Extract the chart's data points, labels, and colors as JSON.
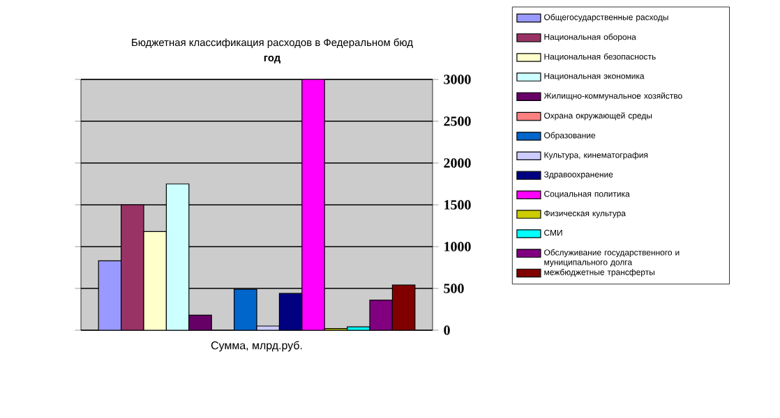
{
  "chart_data": {
    "type": "bar",
    "title": "Бюджетная классификация расходов в Федеральном бюд",
    "subtitle": "год",
    "categories": [
      "Сумма, млрд.руб."
    ],
    "series": [
      {
        "name": "Общегосударственные расходы",
        "color": "#9999ff",
        "values": [
          830
        ]
      },
      {
        "name": "Национальная оборона",
        "color": "#993366",
        "values": [
          1500
        ]
      },
      {
        "name": "Национальная безопасность",
        "color": "#ffffcc",
        "values": [
          1180
        ]
      },
      {
        "name": "Национальная экономика",
        "color": "#ccffff",
        "values": [
          1750
        ]
      },
      {
        "name": "Жилищно-коммунальное хозяйство",
        "color": "#660066",
        "values": [
          180
        ]
      },
      {
        "name": "Охрана окружающей среды",
        "color": "#ff8080",
        "values": [
          null
        ]
      },
      {
        "name": "Образование",
        "color": "#0066cc",
        "values": [
          490
        ]
      },
      {
        "name": "Культура, кинематография",
        "color": "#ccccff",
        "values": [
          50
        ]
      },
      {
        "name": "Здравоохранение",
        "color": "#000080",
        "values": [
          440
        ]
      },
      {
        "name": "Социальная политика",
        "color": "#ff00ff",
        "values": [
          3000
        ]
      },
      {
        "name": "Физическая культура",
        "color": "#cccc00",
        "values": [
          20
        ]
      },
      {
        "name": "СМИ",
        "color": "#00ffff",
        "values": [
          40
        ]
      },
      {
        "name": "Обслуживание государственного и муниципального долга",
        "color": "#800080",
        "values": [
          360
        ]
      },
      {
        "name": "межбюджетные трансферты",
        "color": "#800000",
        "values": [
          540
        ]
      }
    ],
    "ylim": [
      0,
      3000
    ],
    "yticks": [
      0,
      500,
      1000,
      1500,
      2000,
      2500,
      3000
    ],
    "grid": "y",
    "legend": "right"
  }
}
